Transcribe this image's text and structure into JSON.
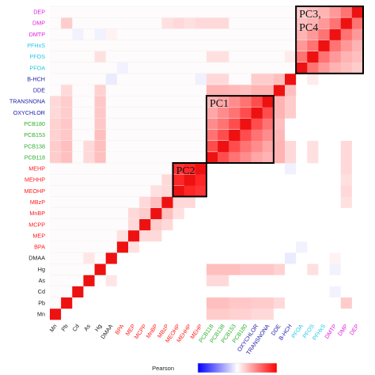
{
  "chart_data": {
    "type": "heatmap",
    "variables": [
      {
        "name": "Mn",
        "color": "#1a1a1a"
      },
      {
        "name": "Pb",
        "color": "#1a1a1a"
      },
      {
        "name": "Cd",
        "color": "#1a1a1a"
      },
      {
        "name": "As",
        "color": "#1a1a1a"
      },
      {
        "name": "Hg",
        "color": "#1a1a1a"
      },
      {
        "name": "DMAA",
        "color": "#1a1a1a"
      },
      {
        "name": "BPA",
        "color": "#ff1a1a"
      },
      {
        "name": "MEP",
        "color": "#ff1a1a"
      },
      {
        "name": "MCPP",
        "color": "#ff1a1a"
      },
      {
        "name": "MnBP",
        "color": "#ff1a1a"
      },
      {
        "name": "MBzP",
        "color": "#ff1a1a"
      },
      {
        "name": "MEOHP",
        "color": "#ff1a1a"
      },
      {
        "name": "MEHHP",
        "color": "#ff1a1a"
      },
      {
        "name": "MEHP",
        "color": "#ff1a1a"
      },
      {
        "name": "PCB118",
        "color": "#2ab02a"
      },
      {
        "name": "PCB138",
        "color": "#2ab02a"
      },
      {
        "name": "PCB153",
        "color": "#2ab02a"
      },
      {
        "name": "PCB180",
        "color": "#2ab02a"
      },
      {
        "name": "OXYCHLOR",
        "color": "#1a1aa6"
      },
      {
        "name": "TRANSNONA",
        "color": "#1a1aa6"
      },
      {
        "name": "DDE",
        "color": "#1a1aa6"
      },
      {
        "name": "B-HCH",
        "color": "#1a1aa6"
      },
      {
        "name": "PFOA",
        "color": "#22c8e6"
      },
      {
        "name": "PFOS",
        "color": "#22c8e6"
      },
      {
        "name": "PFHxS",
        "color": "#22c8e6"
      },
      {
        "name": "DMTP",
        "color": "#e01ee0"
      },
      {
        "name": "DMP",
        "color": "#e01ee0"
      },
      {
        "name": "DEP",
        "color": "#e01ee0"
      }
    ],
    "correlation_clusters": [
      {
        "variables": [
          "MEOHP",
          "MEHHP",
          "MEHP"
        ],
        "pairwise_r": [
          0.85,
          0.8,
          0.75
        ]
      },
      {
        "variables": [
          "PCB118",
          "PCB138",
          "PCB153",
          "PCB180",
          "OXYCHLOR",
          "TRANSNONA"
        ],
        "pairwise_r": [
          0.7,
          0.55,
          0.45,
          0.35,
          0.3
        ]
      },
      {
        "variables": [
          "PFOA",
          "PFOS",
          "PFHxS",
          "DMTP",
          "DMP",
          "DEP"
        ],
        "pairwise_r": [
          0.55,
          0.4,
          0.3,
          0.25,
          0.2
        ]
      }
    ],
    "notable_pairs": [
      {
        "a": "Mn",
        "b": "PCB118",
        "r": 0.2
      },
      {
        "a": "Mn",
        "b": "PCB138",
        "r": 0.2
      },
      {
        "a": "Mn",
        "b": "PCB153",
        "r": 0.18
      },
      {
        "a": "Mn",
        "b": "PCB180",
        "r": 0.18
      },
      {
        "a": "Mn",
        "b": "OXYCHLOR",
        "r": 0.15
      },
      {
        "a": "Mn",
        "b": "TRANSNONA",
        "r": 0.15
      },
      {
        "a": "Pb",
        "b": "PCB118",
        "r": 0.25
      },
      {
        "a": "Pb",
        "b": "PCB138",
        "r": 0.25
      },
      {
        "a": "Pb",
        "b": "PCB153",
        "r": 0.22
      },
      {
        "a": "Pb",
        "b": "PCB180",
        "r": 0.22
      },
      {
        "a": "Pb",
        "b": "OXYCHLOR",
        "r": 0.2
      },
      {
        "a": "Pb",
        "b": "TRANSNONA",
        "r": 0.2
      },
      {
        "a": "Pb",
        "b": "DDE",
        "r": 0.15
      },
      {
        "a": "Pb",
        "b": "DMP",
        "r": 0.2
      },
      {
        "a": "Hg",
        "b": "PCB118",
        "r": 0.25
      },
      {
        "a": "Hg",
        "b": "PCB138",
        "r": 0.25
      },
      {
        "a": "Hg",
        "b": "PCB153",
        "r": 0.25
      },
      {
        "a": "Hg",
        "b": "PCB180",
        "r": 0.22
      },
      {
        "a": "Hg",
        "b": "OXYCHLOR",
        "r": 0.22
      },
      {
        "a": "Hg",
        "b": "TRANSNONA",
        "r": 0.22
      },
      {
        "a": "Hg",
        "b": "DDE",
        "r": 0.18
      },
      {
        "a": "Hg",
        "b": "PFOS",
        "r": 0.12
      },
      {
        "a": "As",
        "b": "PCB118",
        "r": 0.15
      },
      {
        "a": "As",
        "b": "PCB138",
        "r": 0.15
      },
      {
        "a": "As",
        "b": "DMAA",
        "r": 0.1
      },
      {
        "a": "BPA",
        "b": "MEP",
        "r": 0.12
      },
      {
        "a": "MEP",
        "b": "MCPP",
        "r": 0.15
      },
      {
        "a": "MEP",
        "b": "MnBP",
        "r": 0.15
      },
      {
        "a": "MCPP",
        "b": "MnBP",
        "r": 0.2
      },
      {
        "a": "MnBP",
        "b": "MBzP",
        "r": 0.25
      },
      {
        "a": "MCPP",
        "b": "MBzP",
        "r": 0.15
      },
      {
        "a": "MBzP",
        "b": "MEOHP",
        "r": 0.15
      },
      {
        "a": "MBzP",
        "b": "MEHHP",
        "r": 0.15
      },
      {
        "a": "MnBP",
        "b": "MEOHP",
        "r": 0.12
      },
      {
        "a": "DDE",
        "b": "PCB118",
        "r": 0.3
      },
      {
        "a": "DDE",
        "b": "PCB138",
        "r": 0.3
      },
      {
        "a": "DDE",
        "b": "PCB153",
        "r": 0.28
      },
      {
        "a": "DDE",
        "b": "PCB180",
        "r": 0.25
      },
      {
        "a": "DDE",
        "b": "OXYCHLOR",
        "r": 0.3
      },
      {
        "a": "DDE",
        "b": "TRANSNONA",
        "r": 0.3
      },
      {
        "a": "B-HCH",
        "b": "PCB118",
        "r": 0.15
      },
      {
        "a": "B-HCH",
        "b": "PCB138",
        "r": 0.15
      },
      {
        "a": "B-HCH",
        "b": "OXYCHLOR",
        "r": 0.2
      },
      {
        "a": "B-HCH",
        "b": "TRANSNONA",
        "r": 0.2
      },
      {
        "a": "B-HCH",
        "b": "DDE",
        "r": 0.25
      },
      {
        "a": "PFOS",
        "b": "PCB118",
        "r": 0.12
      },
      {
        "a": "PFOS",
        "b": "PCB138",
        "r": 0.12
      },
      {
        "a": "PFOS",
        "b": "B-HCH",
        "r": 0.08
      },
      {
        "a": "MEHP",
        "b": "DMP",
        "r": 0.15
      },
      {
        "a": "MEHHP",
        "b": "DMP",
        "r": 0.12
      },
      {
        "a": "MEOHP",
        "b": "DMP",
        "r": 0.15
      },
      {
        "a": "MBzP",
        "b": "DMP",
        "r": 0.12
      },
      {
        "a": "PCB118",
        "b": "DMP",
        "r": 0.15
      },
      {
        "a": "PCB138",
        "b": "DMP",
        "r": 0.15
      },
      {
        "a": "DMTP",
        "b": "DMAA",
        "r": 0.05
      },
      {
        "a": "BPA",
        "b": "PFOA",
        "r": -0.05
      },
      {
        "a": "DMAA",
        "b": "B-HCH",
        "r": -0.08
      },
      {
        "a": "Cd",
        "b": "DMTP",
        "r": -0.05
      },
      {
        "a": "MEHP",
        "b": "B-HCH",
        "r": -0.06
      },
      {
        "a": "Hg",
        "b": "DMTP",
        "r": -0.05
      }
    ],
    "diagonal_r": 1,
    "boxes": [
      {
        "label": "PC2",
        "start": "MEOHP",
        "end": "MEHP"
      },
      {
        "label": "PC1",
        "start": "PCB118",
        "end": "TRANSNONA"
      },
      {
        "label": "PC3,\nPC4",
        "start": "PFOA",
        "end": "DEP"
      }
    ],
    "colorbar": {
      "title": "Pearson",
      "min": -1,
      "max": 1,
      "colors": [
        "#0000ff",
        "#ffffff",
        "#ff0000"
      ]
    }
  }
}
